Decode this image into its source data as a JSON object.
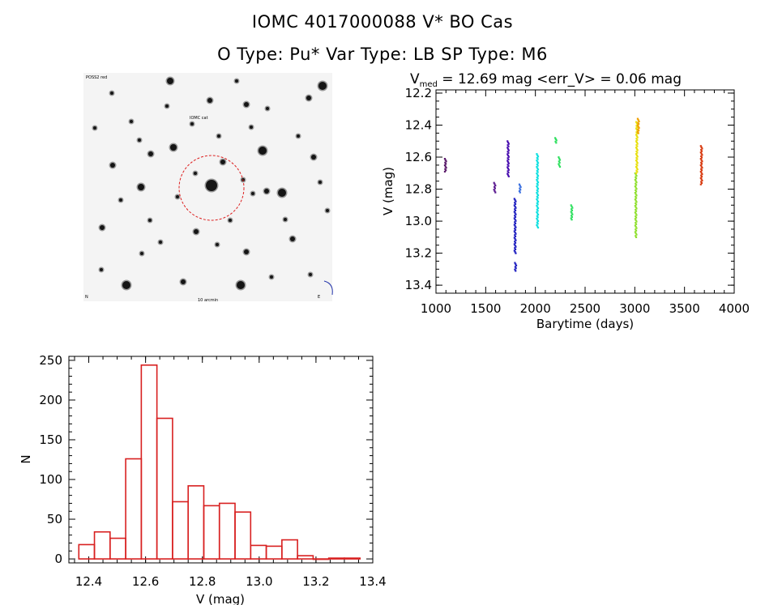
{
  "header": {
    "title": "IOMC 4017000088    V* BO Cas",
    "subtitle": "O Type: Pu*  Var Type: LB  SP Type: M6"
  },
  "finder": {
    "label_top_left": "POSS2 red",
    "label_top": "IOMC cat",
    "label_bottom": "10 arcmin",
    "label_bottom_left": "N",
    "label_bottom_right": "E"
  },
  "chart_data": [
    {
      "type": "scatter",
      "title_prefix": "V",
      "title_subscript": "med",
      "title_rest": " = 12.69 mag <err_V> = 0.06 mag",
      "xlabel": "Barytime (days)",
      "ylabel": "V (mag)",
      "xlim": [
        1000,
        4000
      ],
      "ylim": [
        13.45,
        12.18
      ],
      "y_inverted": true,
      "xticks": [
        1000,
        1500,
        2000,
        2500,
        3000,
        3500,
        4000
      ],
      "yticks": [
        "12.2",
        "12.4",
        "12.6",
        "12.8",
        "13.0",
        "13.2",
        "13.4"
      ],
      "groups": [
        {
          "x": 1095,
          "ymin": 12.61,
          "ymax": 12.69,
          "color": "#5a1a6a"
        },
        {
          "x": 1590,
          "ymin": 12.76,
          "ymax": 12.82,
          "color": "#5a1a90"
        },
        {
          "x": 1725,
          "ymin": 12.5,
          "ymax": 12.72,
          "color": "#4a10b0"
        },
        {
          "x": 1795,
          "ymin": 12.86,
          "ymax": 13.2,
          "color": "#2020c0"
        },
        {
          "x": 1800,
          "ymin": 13.26,
          "ymax": 13.31,
          "color": "#2020c0"
        },
        {
          "x": 1845,
          "ymin": 12.77,
          "ymax": 12.82,
          "color": "#3a70e0"
        },
        {
          "x": 2020,
          "ymin": 12.58,
          "ymax": 13.04,
          "color": "#10e0e0"
        },
        {
          "x": 2205,
          "ymin": 12.48,
          "ymax": 12.51,
          "color": "#30e060"
        },
        {
          "x": 2240,
          "ymin": 12.6,
          "ymax": 12.66,
          "color": "#30e060"
        },
        {
          "x": 2365,
          "ymin": 12.9,
          "ymax": 12.99,
          "color": "#30e060"
        },
        {
          "x": 3010,
          "ymin": 12.7,
          "ymax": 13.1,
          "color": "#90e030"
        },
        {
          "x": 3020,
          "ymin": 12.38,
          "ymax": 12.7,
          "color": "#e8e010"
        },
        {
          "x": 3035,
          "ymin": 12.36,
          "ymax": 12.45,
          "color": "#f0a000"
        },
        {
          "x": 3670,
          "ymin": 12.53,
          "ymax": 12.77,
          "color": "#d83a10"
        }
      ]
    },
    {
      "type": "bar",
      "xlabel": "V (mag)",
      "ylabel": "N",
      "xlim": [
        12.33,
        13.4
      ],
      "ylim": [
        -5,
        255
      ],
      "xticks": [
        "12.4",
        "12.6",
        "12.8",
        "13.0",
        "13.2",
        "13.4"
      ],
      "yticks": [
        "0",
        "50",
        "100",
        "150",
        "200",
        "250"
      ],
      "bin_width": 0.055,
      "bin_starts": [
        12.365,
        12.42,
        12.475,
        12.53,
        12.585,
        12.64,
        12.695,
        12.75,
        12.805,
        12.86,
        12.915,
        12.97,
        13.025,
        13.08,
        13.135,
        13.19,
        13.245,
        13.3
      ],
      "values": [
        18,
        34,
        26,
        126,
        244,
        177,
        72,
        92,
        67,
        70,
        59,
        17,
        16,
        24,
        4,
        0,
        1,
        1
      ],
      "color": "#d82020"
    }
  ]
}
